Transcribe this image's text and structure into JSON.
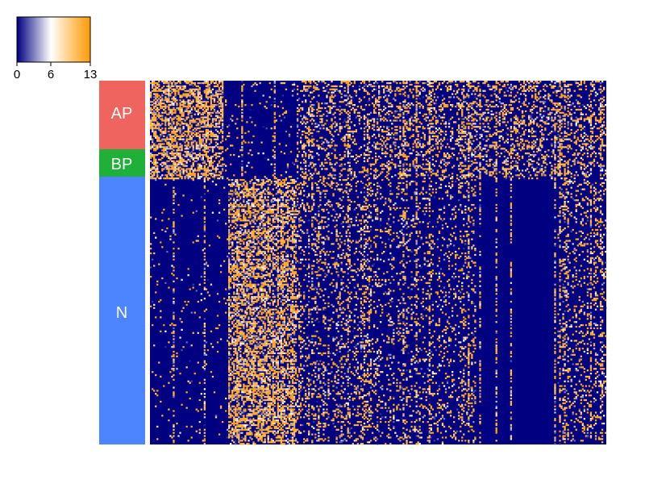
{
  "chart_data": {
    "type": "heatmap",
    "title": "",
    "colorbar": {
      "ticks": [
        0,
        6,
        13
      ],
      "tick_labels": [
        "0",
        "6",
        "13"
      ],
      "range": [
        0,
        13
      ],
      "colors": [
        "#000080",
        "#ffffff",
        "#ff9900"
      ],
      "stops": [
        0,
        6,
        13
      ]
    },
    "row_annotation": {
      "groups": [
        {
          "label": "AP",
          "color": "#f06460",
          "rows": 45
        },
        {
          "label": "BP",
          "color": "#1fb03a",
          "rows": 18
        },
        {
          "label": "N",
          "color": "#4d84ff",
          "rows": 170
        }
      ],
      "label_color": "#ffffff"
    },
    "matrix": {
      "n_columns": 280,
      "description_of_structure": {
        "AP_BP_high_columns": [
          1,
          45
        ],
        "N_high_columns": [
          48,
          90
        ],
        "background_value": 0,
        "high_value": 13
      }
    }
  }
}
